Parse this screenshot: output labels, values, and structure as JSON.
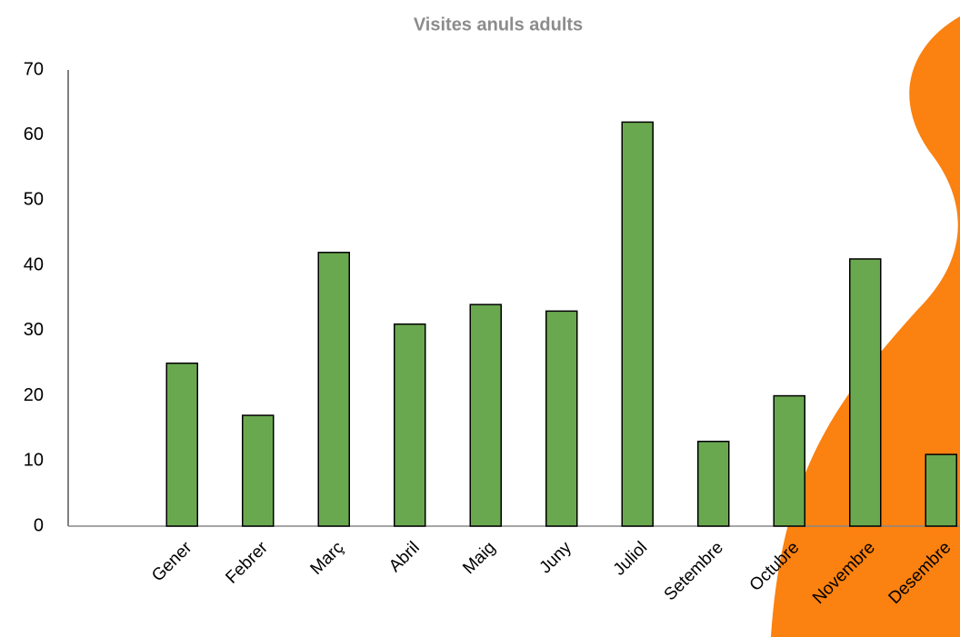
{
  "chart_data": {
    "type": "bar",
    "title": "Visites anuls adults",
    "categories": [
      null,
      "Gener",
      "Febrer",
      "Març",
      "Abril",
      "Maig",
      "Juny",
      "Juliol",
      "Setembre",
      "Octubre",
      "Novembre",
      "Desembre"
    ],
    "values": [
      null,
      25,
      17,
      42,
      31,
      34,
      33,
      62,
      13,
      20,
      41,
      11
    ],
    "color": "#6aa84f",
    "ylim": [
      0,
      70
    ],
    "yticks": [
      0,
      10,
      20,
      30,
      40,
      50,
      60,
      70
    ],
    "grid": false
  }
}
